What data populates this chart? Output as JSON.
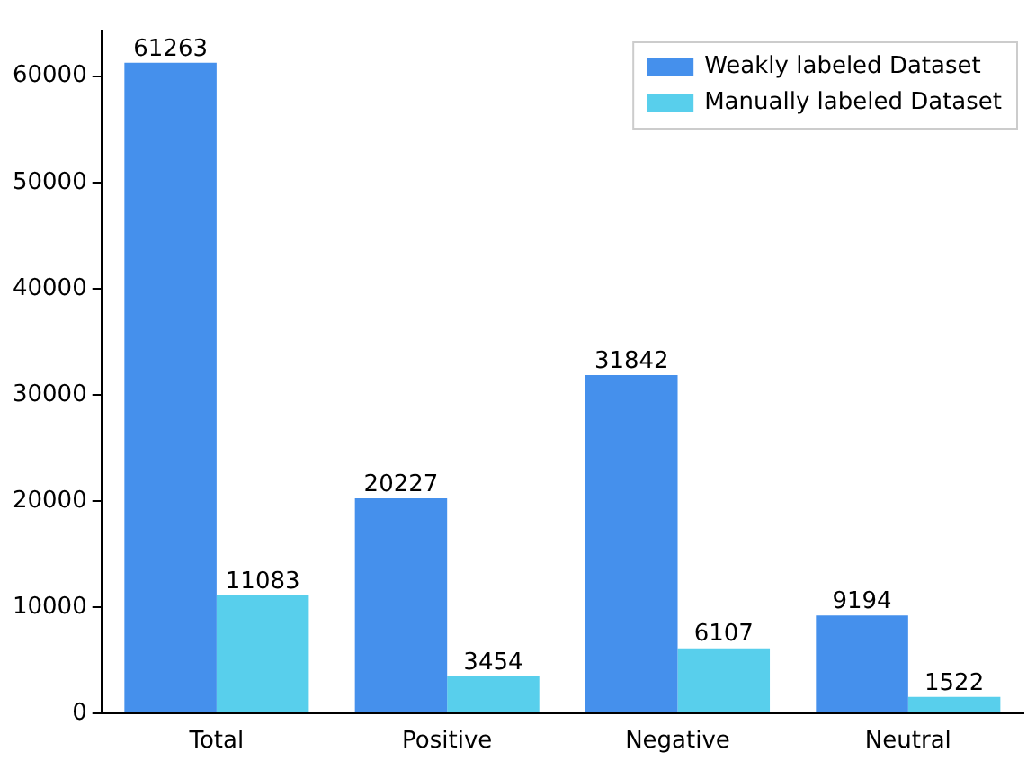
{
  "chart_data": {
    "type": "bar",
    "categories": [
      "Total",
      "Positive",
      "Negative",
      "Neutral"
    ],
    "series": [
      {
        "name": "Weakly labeled Dataset",
        "color": "#4590ec",
        "values": [
          61263,
          20227,
          31842,
          9194
        ]
      },
      {
        "name": "Manually labeled Dataset",
        "color": "#58cfec",
        "values": [
          11083,
          3454,
          6107,
          1522
        ]
      }
    ],
    "ylim": [
      0,
      64300
    ],
    "yticks": [
      0,
      10000,
      20000,
      30000,
      40000,
      50000,
      60000
    ],
    "data_labels": true,
    "legend": "top right",
    "grid": false
  }
}
